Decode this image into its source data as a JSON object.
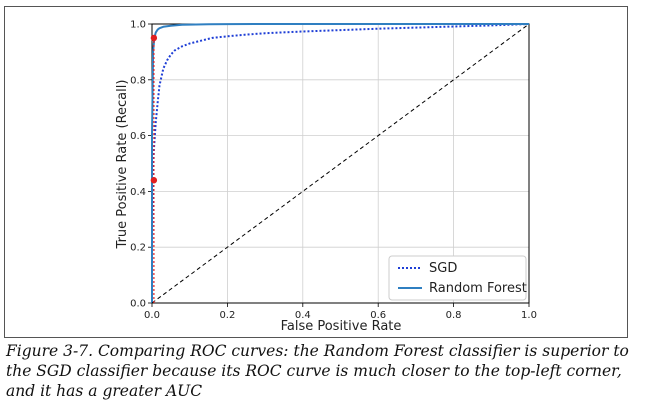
{
  "figure": {
    "caption": "Figure 3-7. Comparing ROC curves: the Random Forest classifier is superior to the SGD classifier because its ROC curve is much closer to the top-left corner, and it has a greater AUC"
  },
  "colors": {
    "sgd": "#1f3fd6",
    "random_forest": "#2f7fc1",
    "diagonal": "#000000",
    "threshold_marker": "#e02020",
    "threshold_line": "#e02020",
    "grid": "#cfcfcf"
  },
  "chart_data": {
    "type": "line",
    "title": "",
    "xlabel": "False Positive Rate",
    "ylabel": "True Positive Rate (Recall)",
    "xlim": [
      0.0,
      1.0
    ],
    "ylim": [
      0.0,
      1.0
    ],
    "xticks": [
      "0.0",
      "0.2",
      "0.4",
      "0.6",
      "0.8",
      "1.0"
    ],
    "yticks": [
      "0.0",
      "0.2",
      "0.4",
      "0.6",
      "0.8",
      "1.0"
    ],
    "grid": true,
    "legend_position": "bottom-right",
    "series": [
      {
        "name": "SGD",
        "style": "dotted",
        "x": [
          0.0,
          0.0,
          0.002,
          0.005,
          0.01,
          0.015,
          0.02,
          0.03,
          0.04,
          0.05,
          0.06,
          0.08,
          0.1,
          0.13,
          0.16,
          0.2,
          0.25,
          0.3,
          0.4,
          0.5,
          0.6,
          0.7,
          0.8,
          0.9,
          1.0
        ],
        "y": [
          0.0,
          0.2,
          0.44,
          0.55,
          0.65,
          0.72,
          0.78,
          0.84,
          0.87,
          0.89,
          0.905,
          0.92,
          0.93,
          0.94,
          0.95,
          0.956,
          0.962,
          0.967,
          0.973,
          0.978,
          0.983,
          0.987,
          0.991,
          0.995,
          1.0
        ]
      },
      {
        "name": "Random Forest",
        "style": "solid",
        "x": [
          0.0,
          0.0,
          0.003,
          0.006,
          0.01,
          0.015,
          0.02,
          0.03,
          0.05,
          0.08,
          0.1,
          0.15,
          0.2,
          0.3,
          0.4,
          0.5,
          0.6,
          0.7,
          0.8,
          0.9,
          1.0
        ],
        "y": [
          0.0,
          0.6,
          0.9,
          0.95,
          0.97,
          0.98,
          0.985,
          0.99,
          0.994,
          0.997,
          0.998,
          0.999,
          0.9995,
          1.0,
          1.0,
          1.0,
          1.0,
          1.0,
          1.0,
          1.0,
          1.0
        ]
      },
      {
        "style": "dashed",
        "x": [
          0.0,
          1.0
        ],
        "y": [
          0.0,
          1.0
        ]
      }
    ],
    "threshold_points": [
      {
        "x": 0.005,
        "y": 0.95
      },
      {
        "x": 0.005,
        "y": 0.44
      }
    ]
  }
}
